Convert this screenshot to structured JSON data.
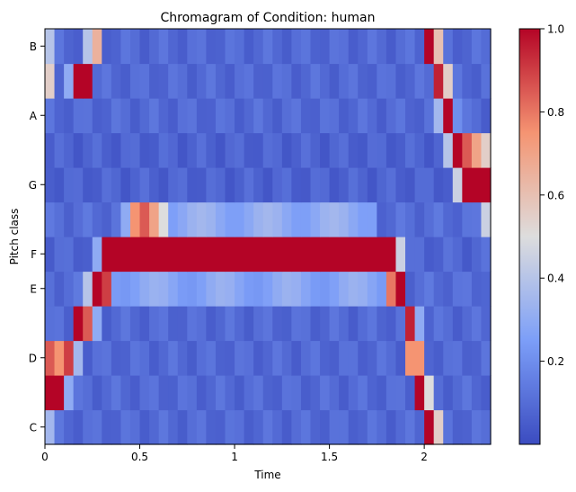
{
  "chart_data": {
    "type": "heatmap",
    "title": "Chromagram of Condition: human",
    "xlabel": "Time",
    "ylabel": "Pitch class",
    "x_range": [
      0,
      2.35
    ],
    "x_ticks": [
      0,
      0.5,
      1,
      1.5,
      2
    ],
    "x_tick_labels": [
      "0",
      "0.5",
      "1",
      "1.5",
      "2"
    ],
    "y_categories": [
      "C",
      "C#",
      "D",
      "D#",
      "E",
      "F",
      "F#",
      "G",
      "G#",
      "A",
      "A#",
      "B"
    ],
    "y_tick_labels": [
      {
        "row": 0,
        "label": "C"
      },
      {
        "row": 2,
        "label": "D"
      },
      {
        "row": 4,
        "label": "E"
      },
      {
        "row": 5,
        "label": "F"
      },
      {
        "row": 7,
        "label": "G"
      },
      {
        "row": 9,
        "label": "A"
      },
      {
        "row": 11,
        "label": "B"
      }
    ],
    "colormap": "coolwarm",
    "color_range": [
      0,
      1
    ],
    "colorbar_ticks": [
      0.2,
      0.4,
      0.6,
      0.8,
      1.0
    ],
    "colorbar_tick_labels": [
      "0.2",
      "0.4",
      "0.6",
      "0.8",
      "1.0"
    ],
    "time_frames": 47,
    "frame_duration": 0.05,
    "rows": [
      {
        "pitch": "C",
        "base": 0.09,
        "peaks": [
          [
            0.0,
            0.35
          ],
          [
            2.02,
            1.0
          ],
          [
            2.07,
            0.55
          ]
        ],
        "band": []
      },
      {
        "pitch": "C#",
        "base": 0.09,
        "peaks": [
          [
            0.02,
            1.0
          ],
          [
            0.07,
            1.0
          ],
          [
            0.12,
            0.3
          ],
          [
            1.97,
            1.0
          ],
          [
            2.02,
            0.5
          ]
        ],
        "band": []
      },
      {
        "pitch": "D",
        "base": 0.09,
        "peaks": [
          [
            0.0,
            0.85
          ],
          [
            0.07,
            0.75
          ],
          [
            0.12,
            0.9
          ],
          [
            0.17,
            0.35
          ],
          [
            1.95,
            0.75
          ],
          [
            1.92,
            0.3
          ]
        ],
        "band": []
      },
      {
        "pitch": "D#",
        "base": 0.09,
        "peaks": [
          [
            0.17,
            1.0
          ],
          [
            0.22,
            0.85
          ],
          [
            0.27,
            0.3
          ],
          [
            1.92,
            0.95
          ],
          [
            1.97,
            0.3
          ]
        ],
        "band": []
      },
      {
        "pitch": "E",
        "base": 0.1,
        "peaks": [
          [
            0.22,
            0.4
          ],
          [
            0.27,
            1.0
          ],
          [
            0.32,
            0.9
          ],
          [
            1.82,
            0.8
          ],
          [
            1.87,
            1.0
          ]
        ],
        "band": [
          0.35,
          1.8,
          0.28
        ]
      },
      {
        "pitch": "F",
        "base": 0.08,
        "peaks": [
          [
            0.32,
            1.0
          ],
          [
            1.87,
            0.45
          ],
          [
            0.27,
            0.3
          ]
        ],
        "band": [
          0.35,
          1.85,
          1.0
        ]
      },
      {
        "pitch": "F#",
        "base": 0.1,
        "peaks": [
          [
            0.47,
            0.75
          ],
          [
            0.52,
            0.85
          ],
          [
            0.57,
            0.7
          ],
          [
            0.62,
            0.5
          ],
          [
            0.42,
            0.3
          ],
          [
            2.32,
            0.45
          ]
        ],
        "band": [
          0.6,
          1.75,
          0.3
        ]
      },
      {
        "pitch": "G",
        "base": 0.07,
        "peaks": [
          [
            2.22,
            1.0
          ],
          [
            2.27,
            1.0
          ],
          [
            2.32,
            1.0
          ],
          [
            2.17,
            0.45
          ]
        ],
        "band": []
      },
      {
        "pitch": "G#",
        "base": 0.07,
        "peaks": [
          [
            2.17,
            1.0
          ],
          [
            2.22,
            0.85
          ],
          [
            2.27,
            0.7
          ],
          [
            2.32,
            0.55
          ],
          [
            2.12,
            0.4
          ]
        ],
        "band": []
      },
      {
        "pitch": "A",
        "base": 0.09,
        "peaks": [
          [
            2.12,
            1.0
          ],
          [
            2.07,
            0.35
          ],
          [
            2.17,
            0.2
          ]
        ],
        "band": []
      },
      {
        "pitch": "A#",
        "base": 0.09,
        "peaks": [
          [
            0.2,
            1.0
          ],
          [
            0.22,
            0.65
          ],
          [
            0.15,
            0.3
          ],
          [
            0.0,
            0.55
          ],
          [
            2.07,
            0.95
          ],
          [
            2.12,
            0.55
          ]
        ],
        "band": []
      },
      {
        "pitch": "B",
        "base": 0.09,
        "peaks": [
          [
            0.27,
            0.65
          ],
          [
            0.22,
            0.4
          ],
          [
            0.0,
            0.4
          ],
          [
            2.02,
            1.0
          ],
          [
            2.07,
            0.6
          ]
        ],
        "band": []
      }
    ]
  }
}
